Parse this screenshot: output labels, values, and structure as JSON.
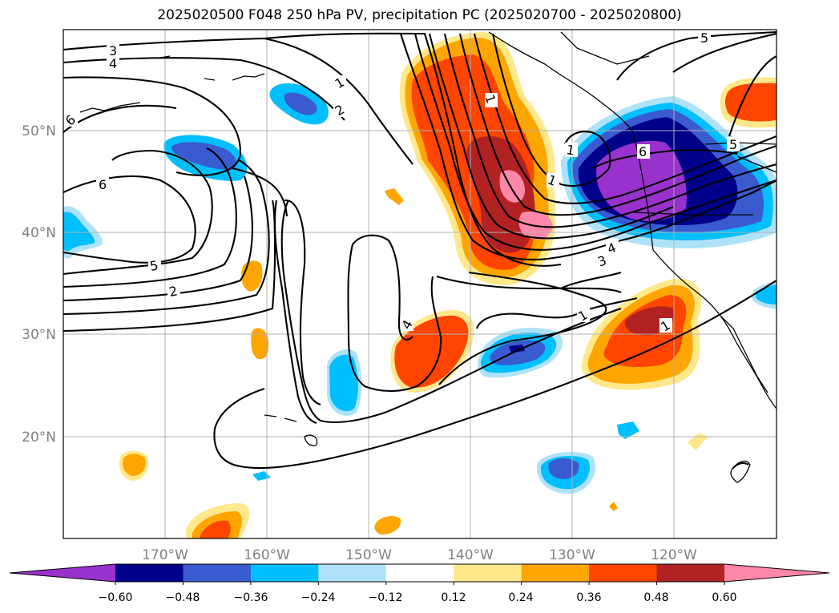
{
  "title": "2025020500 F048 250 hPa PV, precipitation PC (2025020700 - 2025020800)",
  "lon_labels": [
    "170°W",
    "160°W",
    "150°W",
    "140°W",
    "130°W",
    "120°W"
  ],
  "lat_labels": [
    "50°N",
    "40°N",
    "30°N",
    "20°N"
  ],
  "contour_labels": [
    "3",
    "4",
    "1",
    "2",
    "6",
    "6",
    "5",
    "2",
    "4",
    "1",
    "1",
    "3",
    "4",
    "1",
    "1",
    "5",
    "5",
    "6",
    "1"
  ],
  "colorbar": {
    "ticks": [
      "−0.60",
      "−0.48",
      "−0.36",
      "−0.24",
      "−0.12",
      "0.12",
      "0.24",
      "0.36",
      "0.48",
      "0.60"
    ],
    "colors": [
      "#9932cc",
      "#00008b",
      "#3a5bd0",
      "#00bfff",
      "#aee2f8",
      "#ffffff",
      "#ffe88a",
      "#ffa500",
      "#ff4500",
      "#b22222",
      "#ff88aa"
    ]
  },
  "colors": {
    "gridline": "#b0b0b0",
    "contour": "#000000",
    "coast": "#000000"
  }
}
